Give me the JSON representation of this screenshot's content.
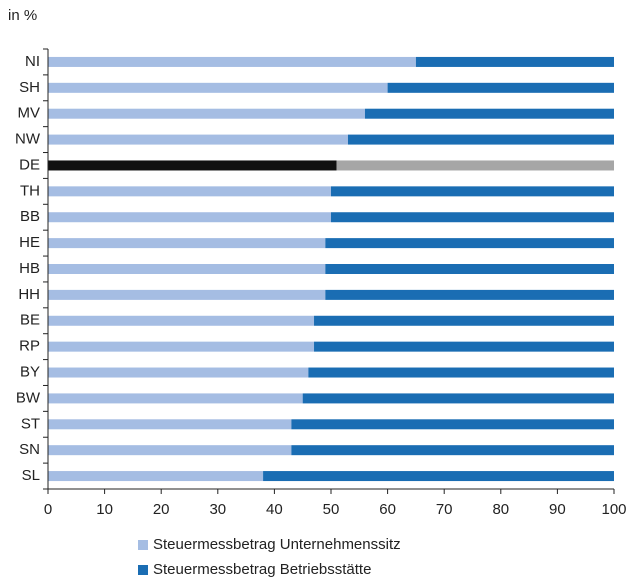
{
  "chart_data": {
    "type": "stacked-bar-horizontal",
    "unit_label": "in %",
    "categories": [
      "NI",
      "SH",
      "MV",
      "NW",
      "DE",
      "TH",
      "BB",
      "HE",
      "HB",
      "HH",
      "BE",
      "RP",
      "BY",
      "BW",
      "ST",
      "SN",
      "SL"
    ],
    "series": [
      {
        "name": "Steuermessbetrag Unternehmenssitz",
        "color": "#a5bde3",
        "highlight_color": "#111111",
        "values": [
          65,
          60,
          56,
          53,
          51,
          50,
          50,
          49,
          49,
          49,
          47,
          47,
          46,
          45,
          43,
          43,
          38
        ]
      },
      {
        "name": "Steuermessbetrag Betriebsstätte",
        "color": "#1a6db3",
        "highlight_color": "#a6a6a6",
        "values": [
          35,
          40,
          44,
          47,
          49,
          50,
          50,
          51,
          51,
          51,
          53,
          53,
          54,
          55,
          57,
          57,
          62
        ]
      }
    ],
    "highlight": 4,
    "xlim": [
      0,
      100
    ],
    "xticks": [
      0,
      10,
      20,
      30,
      40,
      50,
      60,
      70,
      80,
      90,
      100
    ]
  }
}
